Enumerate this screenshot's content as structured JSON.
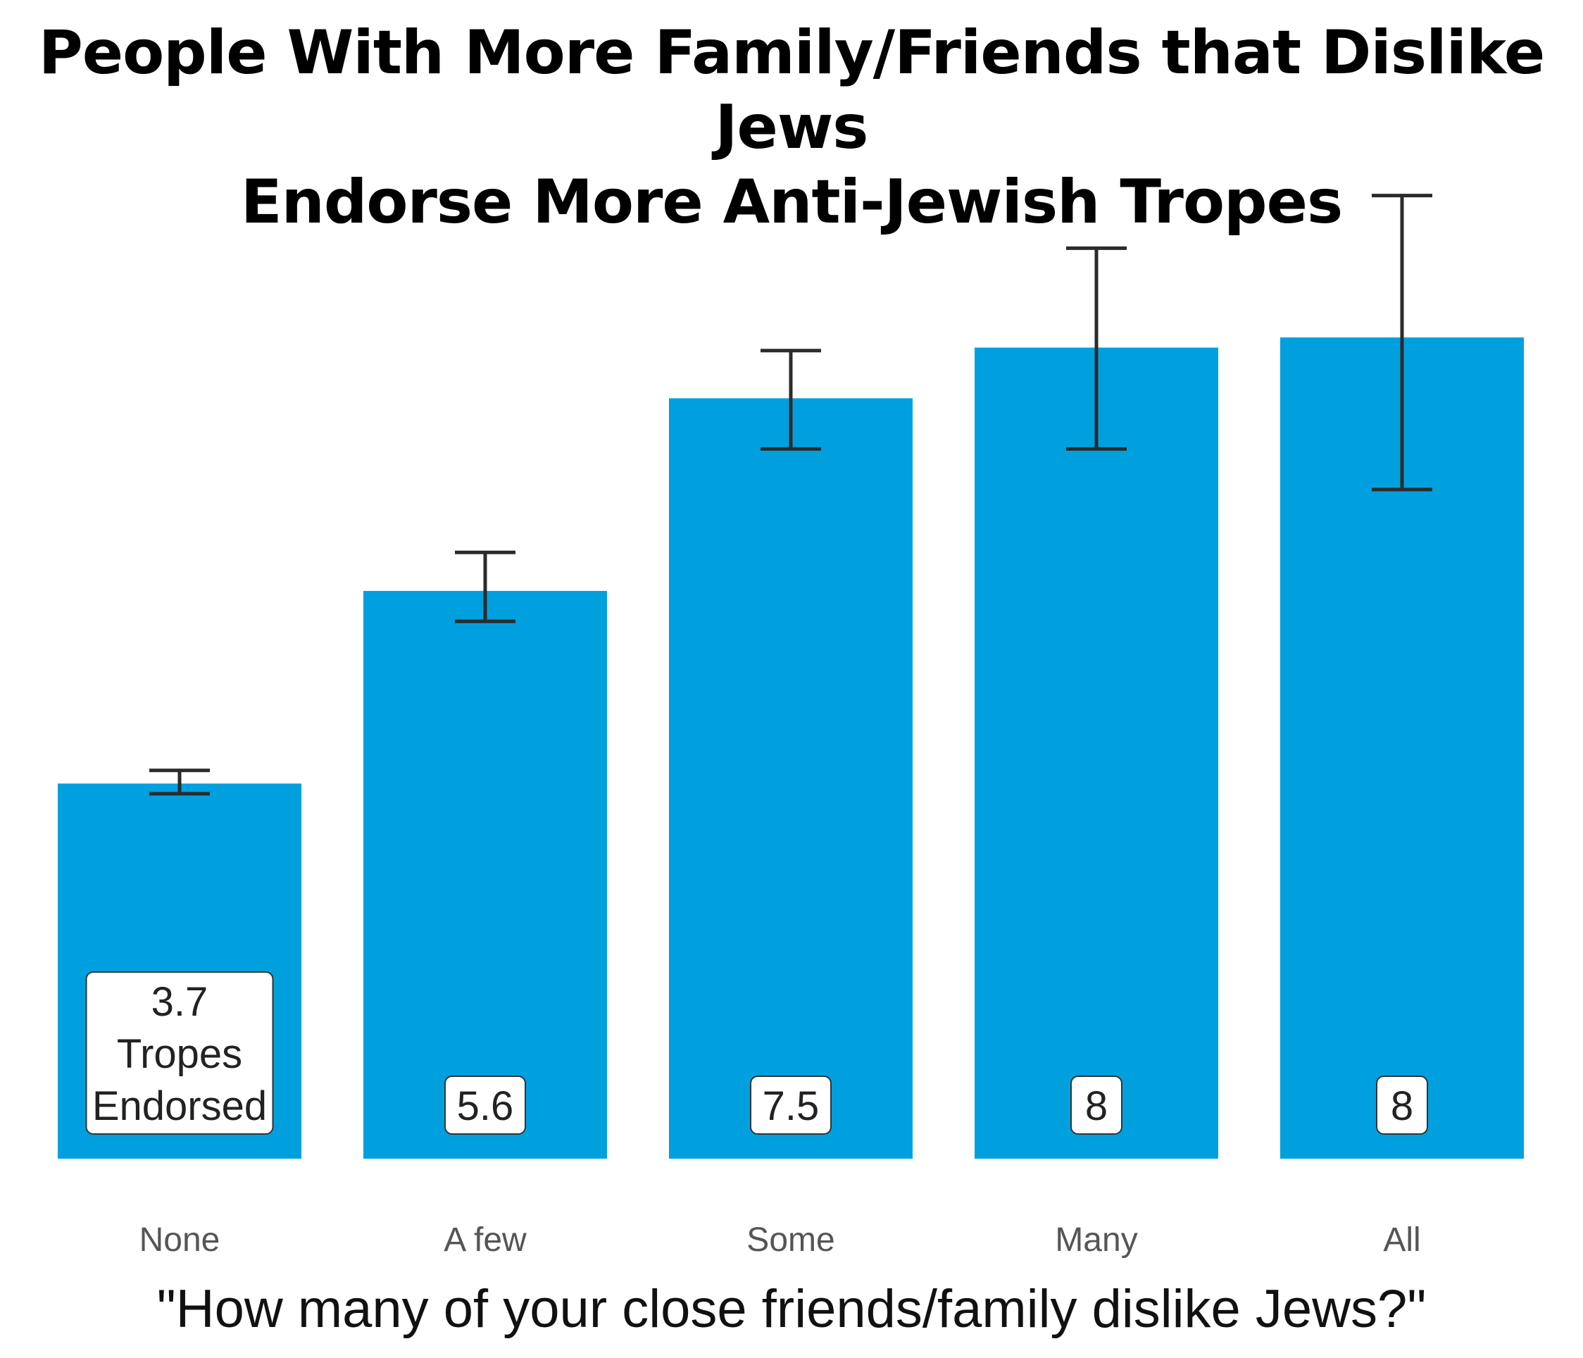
{
  "chart_data": {
    "type": "bar",
    "title_lines": [
      "People With More Family/Friends that Dislike Jews",
      "Endorse More Anti-Jewish Tropes"
    ],
    "categories": [
      "None",
      "A few",
      "Some",
      "Many",
      "All"
    ],
    "values": [
      3.7,
      5.6,
      7.5,
      8.0,
      8.1
    ],
    "error_low": [
      3.6,
      5.3,
      7.0,
      7.0,
      6.6
    ],
    "error_high": [
      3.83,
      5.98,
      7.97,
      8.98,
      9.5
    ],
    "data_labels": [
      "3.7\nTropes\nEndorsed",
      "5.6",
      "7.5",
      "8",
      "8"
    ],
    "xlabel": "\"How many of your close friends/family dislike Jews?\"",
    "ylabel": "",
    "ylim": [
      0,
      9.9
    ],
    "grid": false,
    "legend": "none",
    "colors": {
      "bar": "#00A0DF",
      "error_bar": "#2B2B2B",
      "label_box": "#FFFFFF",
      "label_border": "#333333",
      "tick_text": "#555555"
    }
  }
}
